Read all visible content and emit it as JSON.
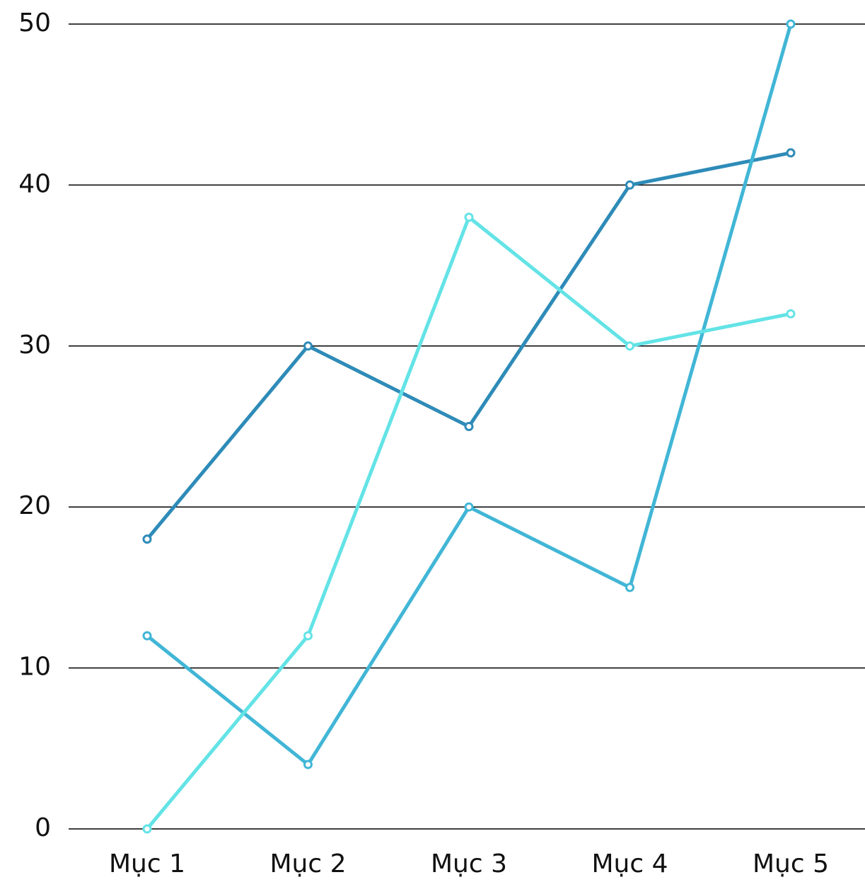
{
  "chart_data": {
    "type": "line",
    "categories": [
      "Mục 1",
      "Mục 2",
      "Mục 3",
      "Mục 4",
      "Mục 5"
    ],
    "series": [
      {
        "color": "#2e8bb8",
        "values": [
          18,
          30,
          25,
          40,
          42
        ]
      },
      {
        "color": "#41b6d6",
        "values": [
          12,
          4,
          20,
          15,
          50
        ]
      },
      {
        "color": "#63e3e6",
        "values": [
          0,
          12,
          38,
          30,
          32
        ]
      }
    ],
    "ylim": [
      0,
      50
    ],
    "yticks": [
      0,
      10,
      20,
      30,
      40,
      50
    ],
    "grid": true
  }
}
